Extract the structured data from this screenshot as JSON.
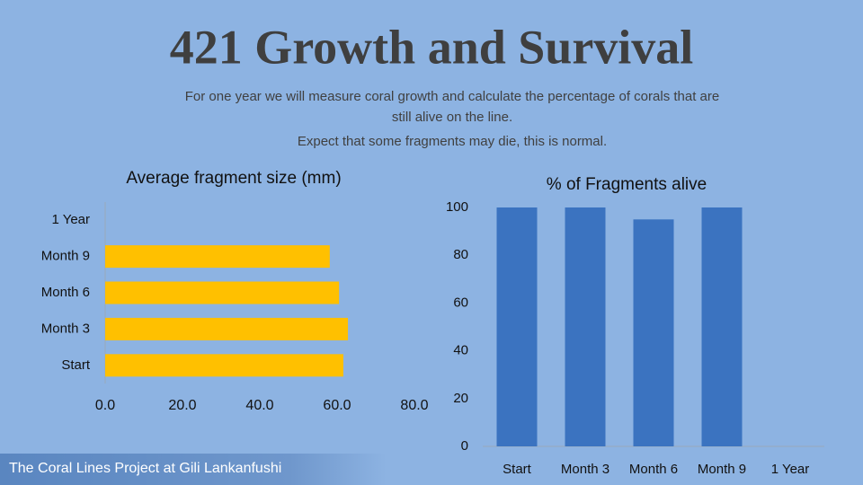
{
  "title": "421 Growth and Survival",
  "subtitle": [
    "For one year we will measure coral growth and calculate the percentage of corals that are",
    "still alive on the line.",
    "Expect that some fragments may die, this is normal."
  ],
  "footer": "The Coral Lines Project at Gili Lankanfushi",
  "chart_data": [
    {
      "type": "bar",
      "orientation": "horizontal",
      "title": "Average fragment size (mm)",
      "categories": [
        "Start",
        "Month 3",
        "Month 6",
        "Month 9",
        "1 Year"
      ],
      "values": [
        61.6,
        62.8,
        60.5,
        58.1,
        null
      ],
      "color": "#ffc000",
      "xlim": [
        0,
        80
      ],
      "xticks": [
        {
          "value": 0,
          "label": "0.0"
        },
        {
          "value": 20,
          "label": "20.0"
        },
        {
          "value": 40,
          "label": "40.0"
        },
        {
          "value": 60,
          "label": "60.0"
        },
        {
          "value": 80,
          "label": "80.0"
        }
      ],
      "grid": false
    },
    {
      "type": "bar",
      "orientation": "vertical",
      "title": "% of Fragments alive",
      "categories": [
        "Start",
        "Month 3",
        "Month 6",
        "Month 9",
        "1 Year"
      ],
      "values": [
        100,
        100,
        95,
        100,
        null
      ],
      "color": "#3b73c0",
      "ylim": [
        0,
        100
      ],
      "yticks": [
        0,
        20,
        40,
        60,
        80,
        100
      ],
      "grid": false
    }
  ]
}
